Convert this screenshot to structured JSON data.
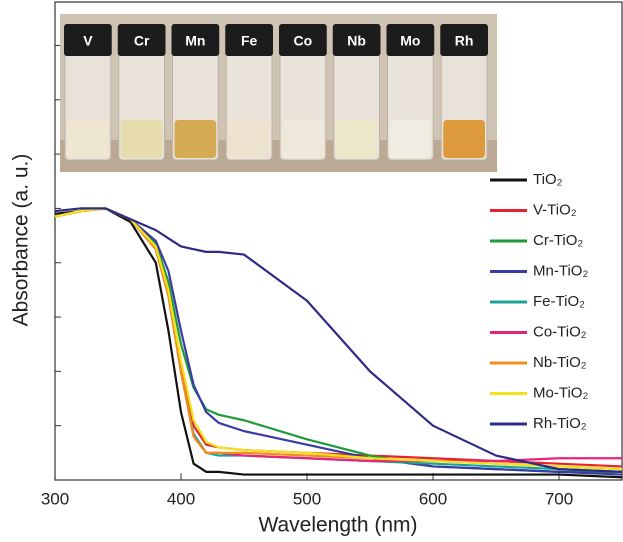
{
  "chart_data": {
    "type": "line",
    "xlabel": "Wavelength (nm)",
    "ylabel": "Absorbance (a. u.)",
    "xlim": [
      300,
      750
    ],
    "ylim": [
      0,
      1.76
    ],
    "xticks": [
      300,
      400,
      500,
      600,
      700
    ],
    "yticks": [
      0.2,
      0.4,
      0.6,
      0.8,
      1.0,
      1.2,
      1.4,
      1.6
    ],
    "x": [
      300,
      320,
      340,
      360,
      380,
      390,
      400,
      410,
      420,
      430,
      450,
      500,
      550,
      600,
      650,
      700,
      750
    ],
    "series": [
      {
        "name": "TiO₂",
        "color": "#111111",
        "values": [
          0.98,
          0.99,
          1.0,
          0.95,
          0.8,
          0.55,
          0.25,
          0.06,
          0.03,
          0.03,
          0.02,
          0.02,
          0.02,
          0.02,
          0.02,
          0.02,
          0.01
        ]
      },
      {
        "name": "V-TiO₂",
        "color": "#e8222a",
        "values": [
          0.97,
          0.99,
          1.0,
          0.96,
          0.86,
          0.7,
          0.42,
          0.2,
          0.13,
          0.12,
          0.11,
          0.1,
          0.09,
          0.08,
          0.07,
          0.06,
          0.05
        ]
      },
      {
        "name": "Cr-TiO₂",
        "color": "#1e9a3a",
        "values": [
          0.97,
          0.99,
          1.0,
          0.96,
          0.87,
          0.73,
          0.5,
          0.34,
          0.26,
          0.24,
          0.22,
          0.15,
          0.09,
          0.05,
          0.04,
          0.03,
          0.03
        ]
      },
      {
        "name": "Mn-TiO₂",
        "color": "#3b3ba6",
        "values": [
          0.97,
          0.99,
          1.0,
          0.96,
          0.88,
          0.77,
          0.55,
          0.35,
          0.25,
          0.21,
          0.18,
          0.13,
          0.08,
          0.05,
          0.04,
          0.03,
          0.02
        ]
      },
      {
        "name": "Fe-TiO₂",
        "color": "#1aa39a",
        "values": [
          0.97,
          0.99,
          1.0,
          0.96,
          0.85,
          0.68,
          0.4,
          0.17,
          0.1,
          0.09,
          0.09,
          0.08,
          0.07,
          0.06,
          0.05,
          0.04,
          0.03
        ]
      },
      {
        "name": "Co-TiO₂",
        "color": "#e8237a",
        "values": [
          0.97,
          0.99,
          1.0,
          0.96,
          0.85,
          0.68,
          0.4,
          0.16,
          0.1,
          0.1,
          0.09,
          0.08,
          0.07,
          0.07,
          0.07,
          0.08,
          0.08
        ]
      },
      {
        "name": "Nb-TiO₂",
        "color": "#f28c1c",
        "values": [
          0.97,
          0.99,
          1.0,
          0.96,
          0.85,
          0.68,
          0.4,
          0.16,
          0.1,
          0.1,
          0.1,
          0.09,
          0.08,
          0.07,
          0.06,
          0.05,
          0.04
        ]
      },
      {
        "name": "Mo-TiO₂",
        "color": "#f5e11a",
        "values": [
          0.97,
          0.99,
          1.0,
          0.96,
          0.86,
          0.7,
          0.44,
          0.22,
          0.14,
          0.12,
          0.11,
          0.1,
          0.08,
          0.07,
          0.06,
          0.05,
          0.04
        ]
      },
      {
        "name": "Rh-TiO₂",
        "color": "#2c2c86",
        "values": [
          0.99,
          1.0,
          1.0,
          0.96,
          0.92,
          0.89,
          0.86,
          0.85,
          0.84,
          0.84,
          0.83,
          0.66,
          0.4,
          0.2,
          0.09,
          0.04,
          0.03
        ]
      }
    ]
  },
  "inset": {
    "labels": [
      "V",
      "Cr",
      "Mn",
      "Fe",
      "Co",
      "Nb",
      "Mo",
      "Rh"
    ]
  }
}
